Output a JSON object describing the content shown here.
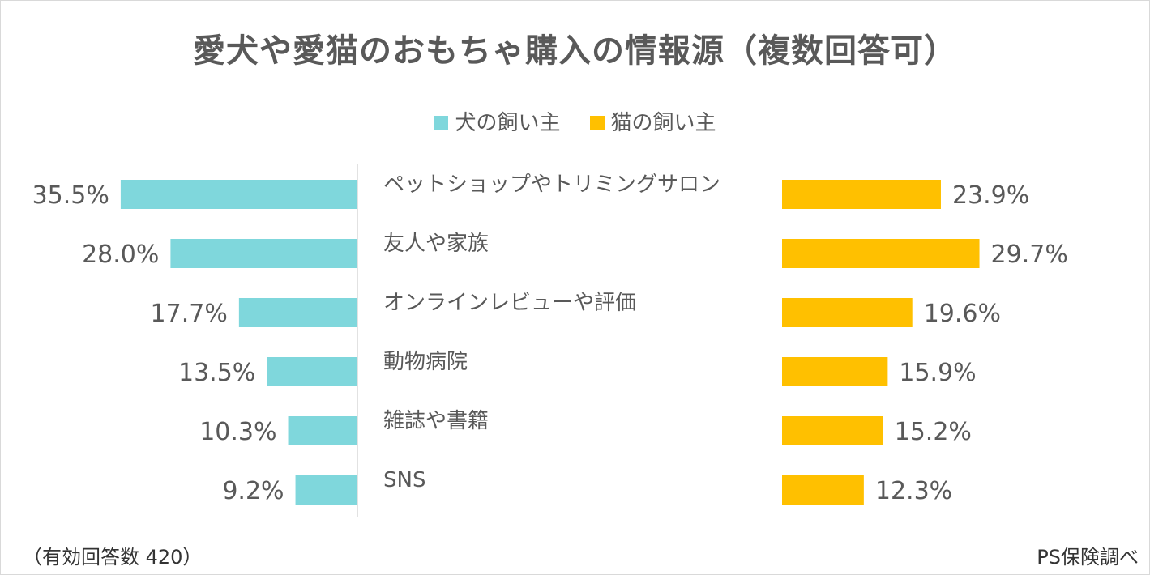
{
  "chart_data": {
    "type": "bar",
    "title": "愛犬や愛猫のおもちゃ購入の情報源（複数回答可）",
    "categories": [
      "ペットショップやトリミングサロン",
      "友人や家族",
      "オンラインレビューや評価",
      "動物病院",
      "雑誌や書籍",
      "SNS"
    ],
    "series": [
      {
        "name": "犬の飼い主",
        "values": [
          35.5,
          28.0,
          17.7,
          13.5,
          10.3,
          9.2
        ],
        "labels": [
          "35.5%",
          "28.0%",
          "17.7%",
          "13.5%",
          "10.3%",
          "9.2%"
        ],
        "color": "#7fd7dc",
        "direction": "left"
      },
      {
        "name": "猫の飼い主",
        "values": [
          23.9,
          29.7,
          19.6,
          15.9,
          15.2,
          12.3
        ],
        "labels": [
          "23.9%",
          "29.7%",
          "19.6%",
          "15.9%",
          "15.2%",
          "12.3%"
        ],
        "color": "#ffc000",
        "direction": "right"
      }
    ],
    "xlim": [
      0,
      40
    ],
    "grid": false,
    "legend_position": "top-center",
    "axis_color": "#d9d9d9",
    "text_color": "#595959"
  },
  "footer": {
    "note": "（有効回答数 420）",
    "source": "PS保険調べ"
  }
}
